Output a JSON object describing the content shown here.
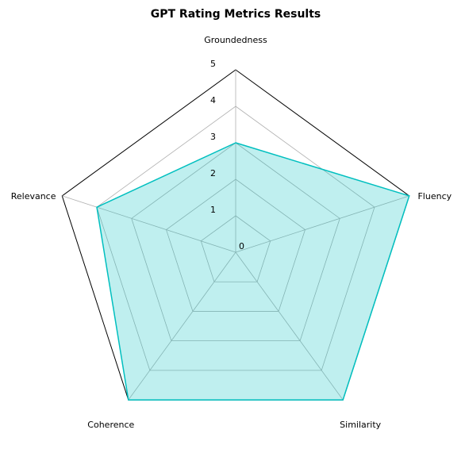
{
  "chart_data": {
    "type": "radar",
    "title": "GPT Rating Metrics Results",
    "categories": [
      "Groundedness",
      "Fluency",
      "Similarity",
      "Coherence",
      "Relevance"
    ],
    "series": [
      {
        "values": [
          3,
          5,
          5,
          5,
          4
        ]
      }
    ],
    "rlim": [
      0,
      5
    ],
    "r_ticks": [
      "0",
      "1",
      "2",
      "3",
      "4",
      "5"
    ],
    "grid": true,
    "colors": {
      "series_line": "#00bfbf",
      "series_fill": "#00bfbf",
      "grid": "#b0b0b0",
      "outer_frame": "#000000"
    }
  }
}
